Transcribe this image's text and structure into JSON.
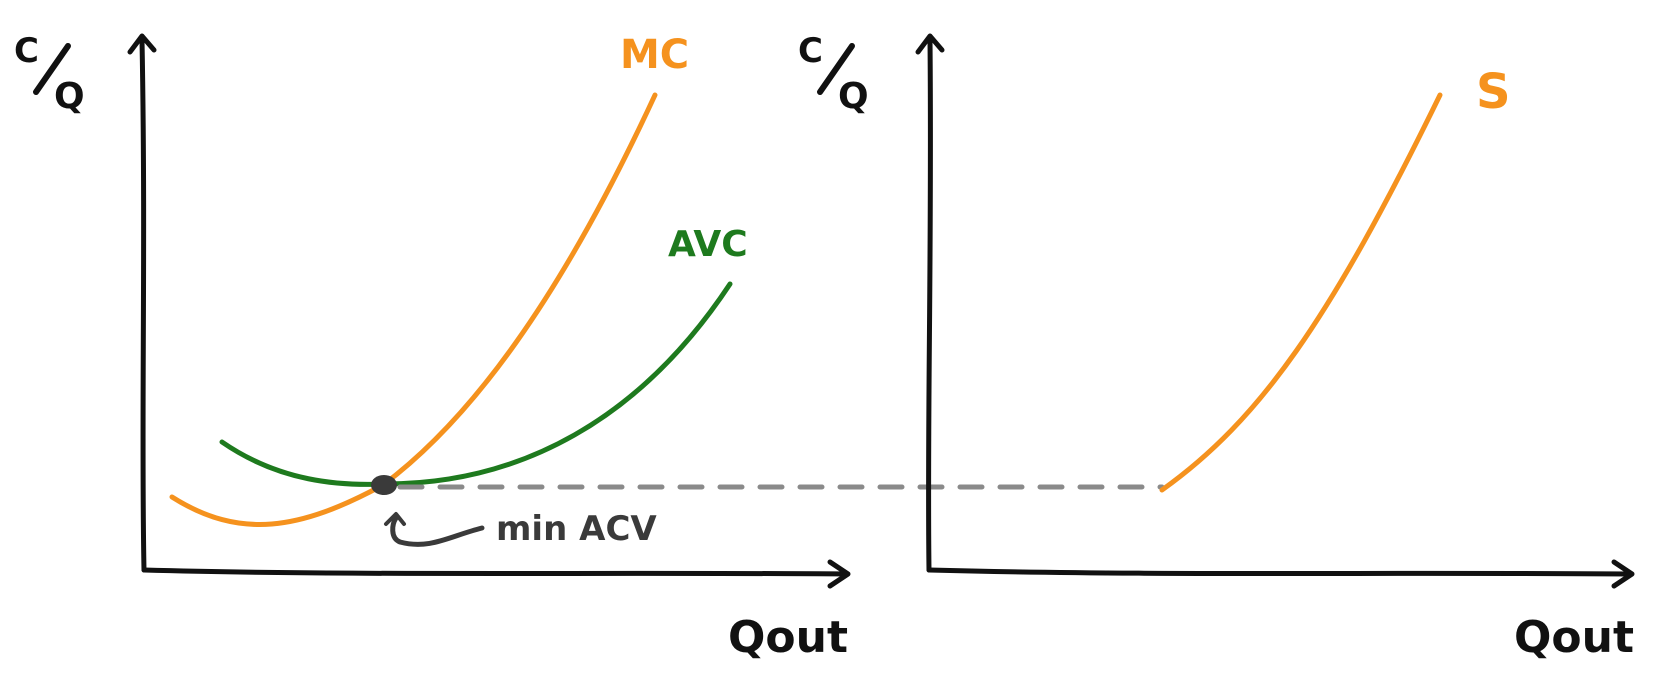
{
  "colors": {
    "axis": "#111111",
    "mc": "#F5921E",
    "avc": "#1E7A1E",
    "supply": "#F5921E",
    "dashed": "#8a8a8a",
    "point": "#3a3a3a",
    "annotation": "#3a3a3a"
  },
  "left_panel": {
    "y_label_top": "C",
    "y_label_bottom": "Q",
    "x_label": "Qout",
    "mc_label": "MC",
    "avc_label": "AVC",
    "annotation": "min ACV"
  },
  "right_panel": {
    "y_label_top": "C",
    "y_label_bottom": "Q",
    "x_label": "Qout",
    "supply_label": "S"
  }
}
